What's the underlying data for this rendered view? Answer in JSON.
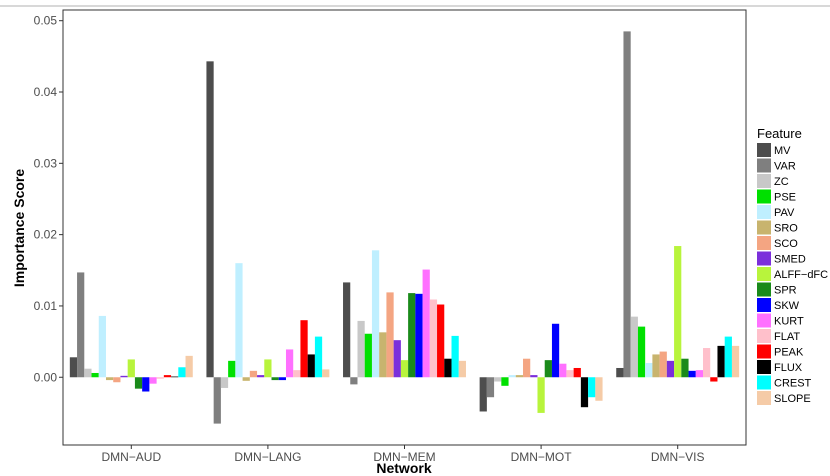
{
  "chart_data": {
    "type": "bar",
    "xlabel": "Network",
    "ylabel": "Importance Score",
    "ylim": [
      -0.0095,
      0.0515
    ],
    "yticks": [
      "0.00",
      "0.01",
      "0.02",
      "0.03",
      "0.04",
      "0.05"
    ],
    "ytick_values": [
      0,
      0.01,
      0.02,
      0.03,
      0.04,
      0.05
    ],
    "categories": [
      "DMN−AUD",
      "DMN−LANG",
      "DMN−MEM",
      "DMN−MOT",
      "DMN−VIS"
    ],
    "legend_title": "Feature",
    "legend_position": "right",
    "grid": false,
    "series": [
      {
        "name": "MV",
        "color": "#4d4d4d",
        "values": [
          0.0028,
          0.0443,
          0.0133,
          -0.0048,
          0.0013
        ]
      },
      {
        "name": "VAR",
        "color": "#7f7f7f",
        "values": [
          0.0147,
          -0.0065,
          -0.001,
          -0.0028,
          0.0485
        ]
      },
      {
        "name": "ZC",
        "color": "#c8c8c8",
        "values": [
          0.0012,
          -0.0015,
          0.0079,
          -0.0006,
          0.0085
        ]
      },
      {
        "name": "PSE",
        "color": "#00e000",
        "values": [
          0.0006,
          0.0023,
          0.0061,
          -0.0012,
          0.0071
        ]
      },
      {
        "name": "PAV",
        "color": "#bfefff",
        "values": [
          0.0086,
          0.016,
          0.0178,
          0.0003,
          0.002
        ]
      },
      {
        "name": "SRO",
        "color": "#c8b46e",
        "values": [
          -0.0004,
          -0.0005,
          0.0063,
          0.0003,
          0.0032
        ]
      },
      {
        "name": "SCO",
        "color": "#f4a582",
        "values": [
          -0.0007,
          0.0009,
          0.0119,
          0.0026,
          0.0036
        ]
      },
      {
        "name": "SMED",
        "color": "#7b2fdb",
        "values": [
          0.0002,
          0.0003,
          0.0052,
          0.0003,
          0.0023
        ]
      },
      {
        "name": "ALFF−dFC",
        "color": "#b8f43c",
        "values": [
          0.0025,
          0.0025,
          0.0024,
          -0.005,
          0.0184
        ]
      },
      {
        "name": "SPR",
        "color": "#1a8a1a",
        "values": [
          -0.0016,
          -0.0004,
          0.0118,
          0.0024,
          0.0026
        ]
      },
      {
        "name": "SKW",
        "color": "#0000ff",
        "values": [
          -0.002,
          -0.0004,
          0.0117,
          0.0075,
          0.0009
        ]
      },
      {
        "name": "KURT",
        "color": "#ff70ff",
        "values": [
          -0.0009,
          0.0039,
          0.0151,
          0.0019,
          0.001
        ]
      },
      {
        "name": "FLAT",
        "color": "#ffc0cb",
        "values": [
          -0.0002,
          0.001,
          0.0109,
          0.001,
          0.0041
        ]
      },
      {
        "name": "PEAK",
        "color": "#ff0000",
        "values": [
          0.0003,
          0.008,
          0.0102,
          0.0013,
          -0.0006
        ]
      },
      {
        "name": "FLUX",
        "color": "#000000",
        "values": [
          0.0001,
          0.0032,
          0.0026,
          -0.0042,
          0.0044
        ]
      },
      {
        "name": "CREST",
        "color": "#00ffff",
        "values": [
          0.0014,
          0.0057,
          0.0058,
          -0.0028,
          0.0057
        ]
      },
      {
        "name": "SLOPE",
        "color": "#f5cba7",
        "values": [
          0.003,
          0.0011,
          0.0023,
          -0.0033,
          0.0044
        ]
      }
    ]
  }
}
